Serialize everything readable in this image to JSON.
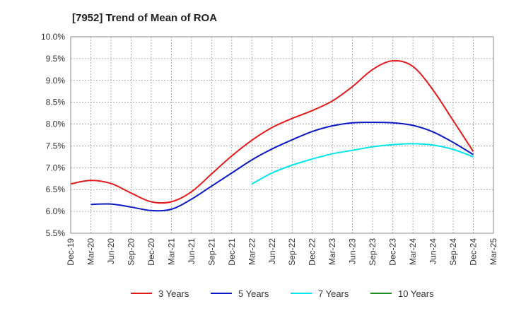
{
  "chart_data": {
    "type": "line",
    "title": "[7952]  Trend of Mean of ROA",
    "xlabel": "",
    "ylabel": "",
    "ylim": [
      5.5,
      10.0
    ],
    "y_ticks": [
      "5.5%",
      "6.0%",
      "6.5%",
      "7.0%",
      "7.5%",
      "8.0%",
      "8.5%",
      "9.0%",
      "9.5%",
      "10.0%"
    ],
    "x_ticks": [
      "Dec-19",
      "Mar-20",
      "Jun-20",
      "Sep-20",
      "Dec-20",
      "Mar-21",
      "Jun-21",
      "Sep-21",
      "Dec-21",
      "Mar-22",
      "Jun-22",
      "Sep-22",
      "Dec-22",
      "Mar-23",
      "Jun-23",
      "Sep-23",
      "Dec-23",
      "Mar-24",
      "Jun-24",
      "Sep-24",
      "Dec-24",
      "Mar-25"
    ],
    "grid": true,
    "legend_position": "bottom",
    "series": [
      {
        "name": "3 Years",
        "color": "#e31a1c",
        "values": [
          6.63,
          6.71,
          6.64,
          6.42,
          6.22,
          6.22,
          6.45,
          6.86,
          7.27,
          7.63,
          7.92,
          8.13,
          8.31,
          8.53,
          8.86,
          9.25,
          9.45,
          9.32,
          8.78,
          8.08,
          7.37,
          null
        ]
      },
      {
        "name": "5 Years",
        "color": "#0a19c8",
        "values": [
          null,
          6.16,
          6.17,
          6.1,
          6.02,
          6.05,
          6.28,
          6.58,
          6.88,
          7.18,
          7.43,
          7.64,
          7.83,
          7.96,
          8.03,
          8.04,
          8.03,
          7.97,
          7.82,
          7.58,
          7.3,
          null
        ]
      },
      {
        "name": "7 Years",
        "color": "#00e5ee",
        "values": [
          null,
          null,
          null,
          null,
          null,
          null,
          null,
          null,
          null,
          6.63,
          6.88,
          7.06,
          7.2,
          7.32,
          7.4,
          7.48,
          7.53,
          7.55,
          7.52,
          7.42,
          7.25,
          null
        ]
      },
      {
        "name": "10 Years",
        "color": "#1e8c1e",
        "values": [
          null,
          null,
          null,
          null,
          null,
          null,
          null,
          null,
          null,
          null,
          null,
          null,
          null,
          null,
          null,
          null,
          null,
          null,
          null,
          null,
          null,
          null
        ]
      }
    ]
  }
}
